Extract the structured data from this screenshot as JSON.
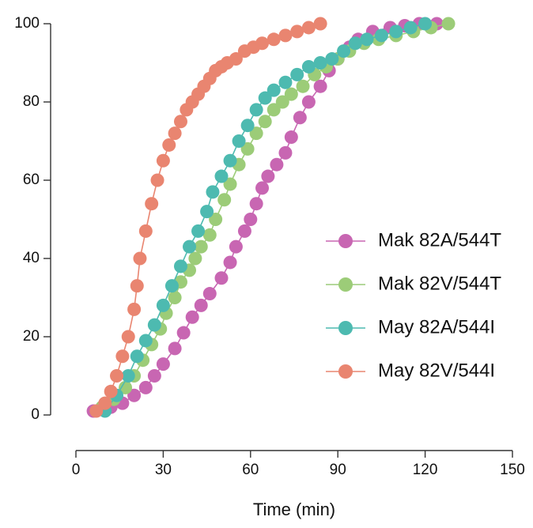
{
  "chart_data": {
    "type": "line",
    "xlabel": "Time (min)",
    "ylabel": "",
    "xlim": [
      0,
      150
    ],
    "ylim": [
      0,
      100
    ],
    "x_ticks": [
      0,
      30,
      60,
      90,
      120,
      150
    ],
    "y_ticks": [
      0,
      20,
      40,
      60,
      80,
      100
    ],
    "legend_position": "right",
    "grid": false,
    "series": [
      {
        "name": "Mak 82A/544T",
        "color": "#c866b2",
        "x": [
          6,
          12,
          16,
          20,
          24,
          27,
          30,
          34,
          37,
          40,
          43,
          46,
          50,
          53,
          55,
          58,
          60,
          62,
          64,
          66,
          69,
          72,
          74,
          77,
          80,
          84,
          87,
          90,
          94,
          97,
          102,
          108,
          113,
          118,
          124
        ],
        "y": [
          1,
          2,
          3,
          5,
          7,
          10,
          13,
          17,
          21,
          25,
          28,
          31,
          35,
          39,
          43,
          47,
          50,
          54,
          58,
          61,
          64,
          67,
          71,
          76,
          80,
          84,
          88,
          91,
          94,
          96,
          98,
          99,
          99.5,
          100,
          100
        ]
      },
      {
        "name": "Mak 82V/544T",
        "color": "#9ccc78",
        "x": [
          9,
          13,
          17,
          20,
          23,
          26,
          29,
          31,
          34,
          36,
          39,
          41,
          43,
          46,
          48,
          51,
          53,
          56,
          59,
          62,
          65,
          68,
          71,
          74,
          78,
          82,
          86,
          90,
          94,
          99,
          104,
          110,
          116,
          122,
          128
        ],
        "y": [
          2,
          4,
          7,
          10,
          14,
          18,
          22,
          26,
          30,
          34,
          37,
          40,
          43,
          46,
          50,
          55,
          59,
          64,
          68,
          72,
          75,
          78,
          80,
          82,
          84,
          87,
          89,
          91,
          93,
          95,
          96,
          97,
          98,
          99,
          100
        ]
      },
      {
        "name": "May 82A/544I",
        "color": "#4dbab0",
        "x": [
          10,
          14,
          18,
          21,
          24,
          27,
          30,
          33,
          36,
          39,
          42,
          45,
          47,
          50,
          53,
          56,
          59,
          62,
          65,
          68,
          72,
          76,
          80,
          84,
          88,
          92,
          96,
          100,
          105,
          110,
          115,
          120
        ],
        "y": [
          1,
          5,
          10,
          15,
          19,
          23,
          28,
          33,
          38,
          43,
          47,
          52,
          57,
          61,
          65,
          70,
          74,
          78,
          81,
          83,
          85,
          87,
          89,
          90,
          91,
          93,
          95,
          96,
          97,
          98,
          99,
          100
        ]
      },
      {
        "name": "May 82V/544I",
        "color": "#e98570",
        "x": [
          7,
          10,
          12,
          14,
          16,
          18,
          20,
          21,
          22,
          24,
          26,
          28,
          30,
          32,
          34,
          36,
          38,
          40,
          42,
          44,
          46,
          48,
          50,
          52,
          55,
          58,
          61,
          64,
          68,
          72,
          76,
          80,
          84
        ],
        "y": [
          1,
          3,
          6,
          10,
          15,
          20,
          27,
          33,
          40,
          47,
          54,
          60,
          65,
          69,
          72,
          75,
          78,
          80,
          82,
          84,
          86,
          88,
          89,
          90,
          91,
          93,
          94,
          95,
          96,
          97,
          98,
          99,
          100
        ]
      }
    ]
  }
}
